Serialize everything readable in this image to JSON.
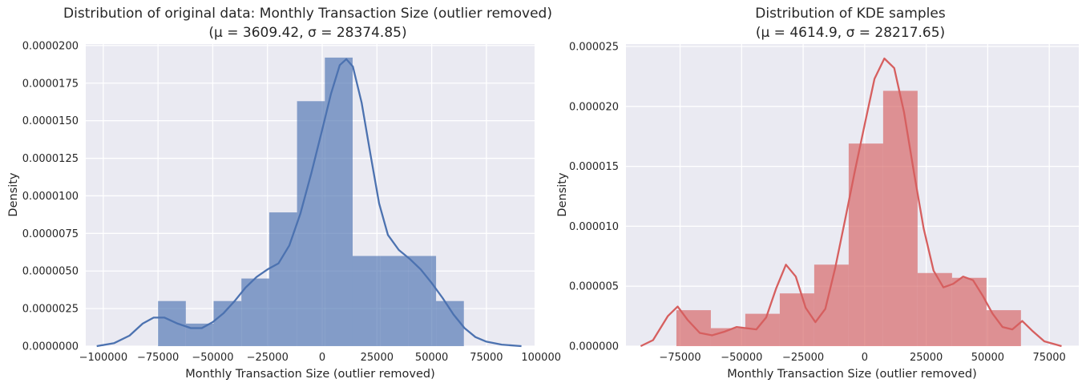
{
  "chart_data": [
    {
      "type": "histogram",
      "title_line1": "Distribution of original data: Monthly Transaction Size (outlier removed)",
      "title_line2": "(μ = 3609.42, σ = 28374.85)",
      "xlabel": "Monthly Transaction Size (outlier removed)",
      "ylabel": "Density",
      "xlim": [
        -108000,
        97000
      ],
      "ylim": [
        0,
        2.01e-05
      ],
      "xticks": [
        -100000,
        -75000,
        -50000,
        -25000,
        0,
        25000,
        50000,
        75000,
        100000
      ],
      "yticks": [
        0,
        2.5e-06,
        5e-06,
        7.5e-06,
        1e-05,
        1.25e-05,
        1.5e-05,
        1.75e-05,
        2e-05
      ],
      "ytick_labels": [
        "0.0000000",
        "0.0000025",
        "0.0000050",
        "0.0000075",
        "0.0000100",
        "0.0000125",
        "0.0000150",
        "0.0000175",
        "0.0000200"
      ],
      "bin_edges": [
        -75000,
        -62300,
        -49600,
        -36900,
        -24200,
        -11500,
        1200,
        13900,
        26600,
        39300,
        52000,
        64700
      ],
      "bin_values": [
        3e-06,
        1.5e-06,
        3e-06,
        4.5e-06,
        8.9e-06,
        1.63e-05,
        1.92e-05,
        6e-06,
        6e-06,
        6e-06,
        3e-06
      ],
      "kde": [
        [
          -103000,
          0.0
        ],
        [
          -95000,
          2e-07
        ],
        [
          -88000,
          7e-07
        ],
        [
          -82000,
          1.5e-06
        ],
        [
          -77000,
          1.9e-06
        ],
        [
          -72000,
          1.9e-06
        ],
        [
          -66000,
          1.5e-06
        ],
        [
          -60000,
          1.2e-06
        ],
        [
          -55000,
          1.2e-06
        ],
        [
          -50000,
          1.6e-06
        ],
        [
          -45000,
          2.2e-06
        ],
        [
          -40000,
          3e-06
        ],
        [
          -35000,
          3.9e-06
        ],
        [
          -30000,
          4.6e-06
        ],
        [
          -25000,
          5.1e-06
        ],
        [
          -20000,
          5.5e-06
        ],
        [
          -15000,
          6.7e-06
        ],
        [
          -10000,
          8.8e-06
        ],
        [
          -5000,
          1.15e-05
        ],
        [
          0,
          1.44e-05
        ],
        [
          4000,
          1.68e-05
        ],
        [
          8000,
          1.87e-05
        ],
        [
          11000,
          1.91e-05
        ],
        [
          14000,
          1.86e-05
        ],
        [
          18000,
          1.62e-05
        ],
        [
          22000,
          1.28e-05
        ],
        [
          26000,
          9.5e-06
        ],
        [
          30000,
          7.4e-06
        ],
        [
          35000,
          6.4e-06
        ],
        [
          40000,
          5.8e-06
        ],
        [
          45000,
          5.1e-06
        ],
        [
          50000,
          4.2e-06
        ],
        [
          55000,
          3.2e-06
        ],
        [
          60000,
          2.1e-06
        ],
        [
          65000,
          1.2e-06
        ],
        [
          70000,
          6e-07
        ],
        [
          75000,
          3e-07
        ],
        [
          82000,
          1e-07
        ],
        [
          91000,
          0.0
        ]
      ],
      "bar_color": "#4c72b0",
      "line_color": "#4c72b0"
    },
    {
      "type": "histogram",
      "title_line1": "Distribution of KDE samples",
      "title_line2": "(μ = 4614.9, σ = 28217.65)",
      "xlabel": "Monthly Transaction Size (outlier removed)",
      "ylabel": "Density",
      "xlim": [
        -97000,
        87000
      ],
      "ylim": [
        0,
        2.52e-05
      ],
      "xticks": [
        -75000,
        -50000,
        -25000,
        0,
        25000,
        50000,
        75000
      ],
      "yticks": [
        0,
        5e-06,
        1e-05,
        1.5e-05,
        2e-05,
        2.5e-05
      ],
      "ytick_labels": [
        "0.000000",
        "0.000005",
        "0.000010",
        "0.000015",
        "0.000020",
        "0.000025"
      ],
      "bin_edges": [
        -76500,
        -62500,
        -48500,
        -34500,
        -20500,
        -6500,
        7500,
        21500,
        35500,
        49500,
        63500
      ],
      "bin_values": [
        3e-06,
        1.5e-06,
        2.7e-06,
        4.4e-06,
        6.8e-06,
        1.69e-05,
        2.13e-05,
        6.1e-06,
        5.7e-06,
        3e-06
      ],
      "kde": [
        [
          -91000,
          0.0
        ],
        [
          -86000,
          5e-07
        ],
        [
          -80000,
          2.5e-06
        ],
        [
          -76000,
          3.3e-06
        ],
        [
          -72000,
          2.2e-06
        ],
        [
          -67000,
          1.1e-06
        ],
        [
          -62000,
          9e-07
        ],
        [
          -57000,
          1.2e-06
        ],
        [
          -52000,
          1.6e-06
        ],
        [
          -48000,
          1.5e-06
        ],
        [
          -44000,
          1.4e-06
        ],
        [
          -40000,
          2.4e-06
        ],
        [
          -36000,
          4.8e-06
        ],
        [
          -32000,
          6.8e-06
        ],
        [
          -28000,
          5.8e-06
        ],
        [
          -24000,
          3.2e-06
        ],
        [
          -20000,
          2e-06
        ],
        [
          -16000,
          3.1e-06
        ],
        [
          -12000,
          6.5e-06
        ],
        [
          -8000,
          1.05e-05
        ],
        [
          -4000,
          1.46e-05
        ],
        [
          0,
          1.85e-05
        ],
        [
          4000,
          2.23e-05
        ],
        [
          8000,
          2.4e-05
        ],
        [
          12000,
          2.32e-05
        ],
        [
          16000,
          1.95e-05
        ],
        [
          20000,
          1.45e-05
        ],
        [
          24000,
          9.8e-06
        ],
        [
          28000,
          6.3e-06
        ],
        [
          32000,
          4.9e-06
        ],
        [
          36000,
          5.2e-06
        ],
        [
          40000,
          5.8e-06
        ],
        [
          44000,
          5.5e-06
        ],
        [
          48000,
          4.2e-06
        ],
        [
          52000,
          2.7e-06
        ],
        [
          56000,
          1.6e-06
        ],
        [
          60000,
          1.4e-06
        ],
        [
          64000,
          2.1e-06
        ],
        [
          68000,
          1.3e-06
        ],
        [
          73000,
          4e-07
        ],
        [
          80000,
          0.0
        ]
      ],
      "bar_color": "#d65f5f",
      "line_color": "#d65f5f"
    }
  ]
}
